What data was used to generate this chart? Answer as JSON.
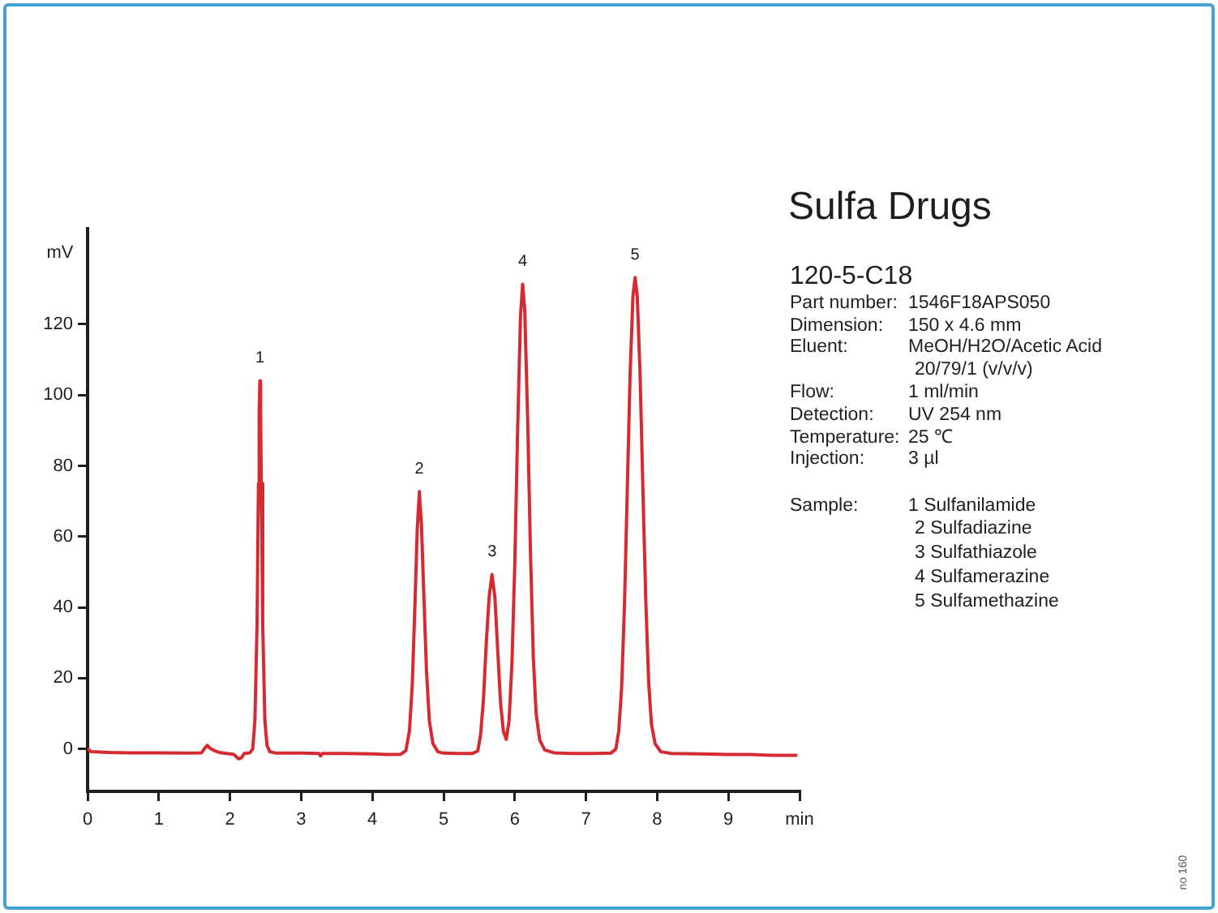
{
  "chart_data": {
    "type": "line",
    "title": "Sulfa Drugs",
    "subtitle": "120-5-C18",
    "ylabel": "mV",
    "x": [
      0,
      0.05,
      0.3,
      0.6,
      1.0,
      1.4,
      1.6,
      1.65,
      1.68,
      1.72,
      1.78,
      1.85,
      1.95,
      2.05,
      2.12,
      2.16,
      2.2,
      2.28,
      2.32,
      2.35,
      2.38,
      2.4,
      2.41,
      2.42,
      2.43,
      2.44,
      2.46,
      2.49,
      2.52,
      2.56,
      2.65,
      3.0,
      3.25,
      3.27,
      3.3,
      3.6,
      4.0,
      4.2,
      4.4,
      4.47,
      4.52,
      4.56,
      4.6,
      4.63,
      4.66,
      4.69,
      4.72,
      4.76,
      4.8,
      4.85,
      4.92,
      5.0,
      5.2,
      5.4,
      5.48,
      5.52,
      5.56,
      5.6,
      5.64,
      5.68,
      5.72,
      5.76,
      5.8,
      5.84,
      5.88,
      5.92,
      5.96,
      6.0,
      6.04,
      6.08,
      6.11,
      6.14,
      6.18,
      6.22,
      6.26,
      6.3,
      6.35,
      6.42,
      6.55,
      6.8,
      7.1,
      7.35,
      7.42,
      7.46,
      7.5,
      7.54,
      7.58,
      7.62,
      7.66,
      7.69,
      7.72,
      7.76,
      7.8,
      7.84,
      7.88,
      7.92,
      7.97,
      8.05,
      8.2,
      8.6,
      9.0,
      9.3,
      9.6,
      9.95
    ],
    "values": [
      0,
      -0.8,
      -1,
      -1.1,
      -1.1,
      -1.2,
      -1.1,
      0.3,
      1,
      0.2,
      -0.5,
      -1,
      -1.3,
      -1.5,
      -2.8,
      -2.5,
      -1.3,
      -1.1,
      0,
      8,
      35,
      75,
      95,
      104,
      95,
      75,
      35,
      8,
      1,
      -0.8,
      -1.2,
      -1.2,
      -1.3,
      -2,
      -1.3,
      -1.3,
      -1.4,
      -1.6,
      -1.5,
      -0.5,
      5,
      18,
      42,
      62,
      72.7,
      63,
      45,
      22,
      8,
      1.5,
      -0.8,
      -1.2,
      -1.3,
      -1.3,
      -0.6,
      4,
      14,
      30,
      43,
      49.3,
      43,
      28,
      13,
      5,
      2.7,
      8,
      24,
      52,
      90,
      122,
      131.3,
      124,
      94,
      56,
      26,
      10,
      2.5,
      -0.3,
      -1.1,
      -1.3,
      -1.3,
      -1.2,
      0,
      5,
      17,
      40,
      73,
      106,
      128,
      133.2,
      128,
      106,
      73,
      42,
      19,
      7,
      1.5,
      -0.8,
      -1.3,
      -1.4,
      -1.6,
      -1.6,
      -1.8,
      -1.8
    ],
    "color": "#d42a32",
    "xlim": [
      0,
      10
    ],
    "ylim": [
      -12,
      147
    ],
    "xticks": [
      0,
      1,
      2,
      3,
      4,
      5,
      6,
      7,
      8,
      9,
      {
        "value": 10,
        "label": "min"
      }
    ],
    "yticks": [
      0,
      20,
      40,
      60,
      80,
      100,
      120
    ],
    "annotations": [
      {
        "text": "1",
        "x": 2.42,
        "y": 104
      },
      {
        "text": "2",
        "x": 4.66,
        "y": 72.7
      },
      {
        "text": "3",
        "x": 5.68,
        "y": 49.3
      },
      {
        "text": "4",
        "x": 6.11,
        "y": 131.3
      },
      {
        "text": "5",
        "x": 7.69,
        "y": 133.2
      },
      "Part number: 1546F18APS050",
      "Dimension: 150 x 4.6 mm",
      "Eluent: MeOH/H2O/Acetic Acid",
      "20/79/1 (v/v/v)",
      "Flow: 1 ml/min",
      "Detection: UV 254 nm",
      "Temperature: 25 ℃",
      "Injection: 3 µl",
      "Sample: 1 Sulfanilamide",
      "2 Sulfadiazine",
      "3 Sulfathiazole",
      "4 Sulfamerazine",
      "5 Sulfamethazine",
      "no 160"
    ]
  }
}
